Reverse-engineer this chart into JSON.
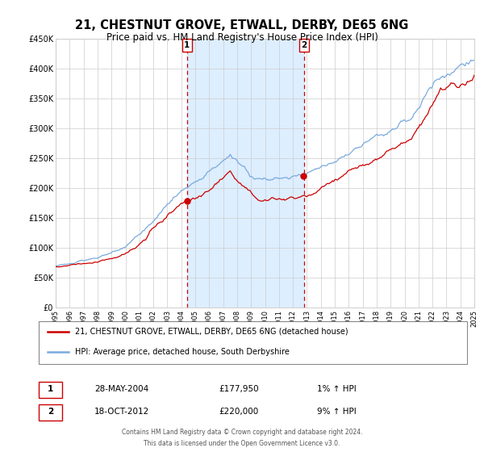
{
  "title": "21, CHESTNUT GROVE, ETWALL, DERBY, DE65 6NG",
  "subtitle": "Price paid vs. HM Land Registry's House Price Index (HPI)",
  "title_fontsize": 10.5,
  "subtitle_fontsize": 8.5,
  "hpi_color": "#7aaadd",
  "property_color": "#cc0000",
  "background_color": "#ffffff",
  "plot_bg_color": "#ffffff",
  "shaded_region_color": "#ddeeff",
  "grid_color": "#cccccc",
  "ylim": [
    0,
    450000
  ],
  "yticks": [
    0,
    50000,
    100000,
    150000,
    200000,
    250000,
    300000,
    350000,
    400000,
    450000
  ],
  "sale1": {
    "date_num": 2004.41,
    "price": 177950,
    "label": "1",
    "date_str": "28-MAY-2004",
    "pct": "1%",
    "direction": "↑"
  },
  "sale2": {
    "date_num": 2012.79,
    "price": 220000,
    "label": "2",
    "date_str": "18-OCT-2012",
    "pct": "9%",
    "direction": "↑"
  },
  "legend_property": "21, CHESTNUT GROVE, ETWALL, DERBY, DE65 6NG (detached house)",
  "legend_hpi": "HPI: Average price, detached house, South Derbyshire",
  "footer1": "Contains HM Land Registry data © Crown copyright and database right 2024.",
  "footer2": "This data is licensed under the Open Government Licence v3.0.",
  "xmin": 1995,
  "xmax": 2025,
  "sale1_label_price": "£177,950",
  "sale2_label_price": "£220,000"
}
